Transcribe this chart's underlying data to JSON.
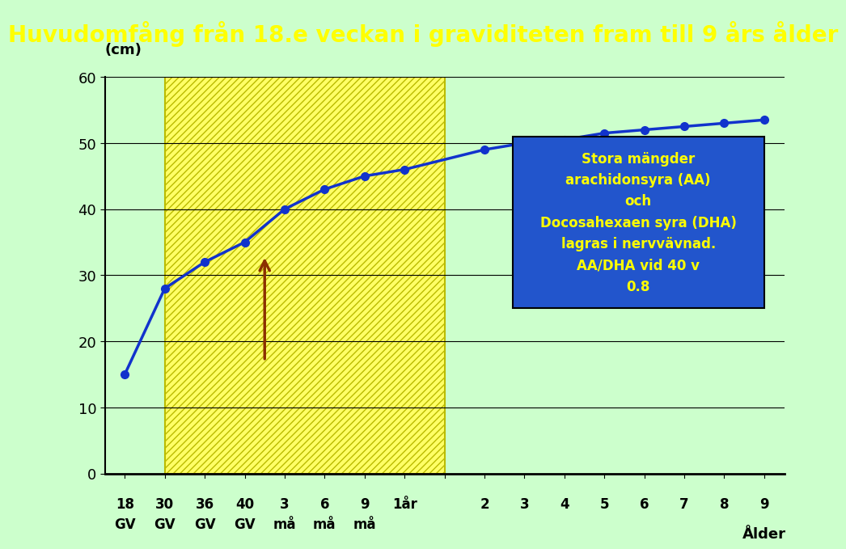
{
  "title": "Huvudomfång från 18.e veckan i graviditeten fram till 9 års ålder",
  "title_color": "#FFFF00",
  "title_bg_color": "#2255CC",
  "ylabel": "(cm)",
  "xlabel": "Ålder",
  "bg_color": "#CCFFCC",
  "ylim": [
    0,
    60
  ],
  "yticks": [
    0,
    10,
    20,
    30,
    40,
    50,
    60
  ],
  "y_values": [
    15,
    28,
    32,
    35,
    40,
    43,
    45,
    46,
    49,
    50,
    50.5,
    51.5,
    52,
    52.5,
    53,
    53.5
  ],
  "hatch_color": "#FFFF00",
  "line_color": "#1133CC",
  "marker_color": "#1133CC",
  "annotation_text": "Stora mängder\narachidonsyra (AA)\noch\nDocosahexaen syra (DHA)\nlagras i nervvävnad.\nAA/DHA vid 40 v\n0.8",
  "annotation_bg": "#2255CC",
  "annotation_fg": "#FFFF00",
  "arrow_color": "#8B3000"
}
